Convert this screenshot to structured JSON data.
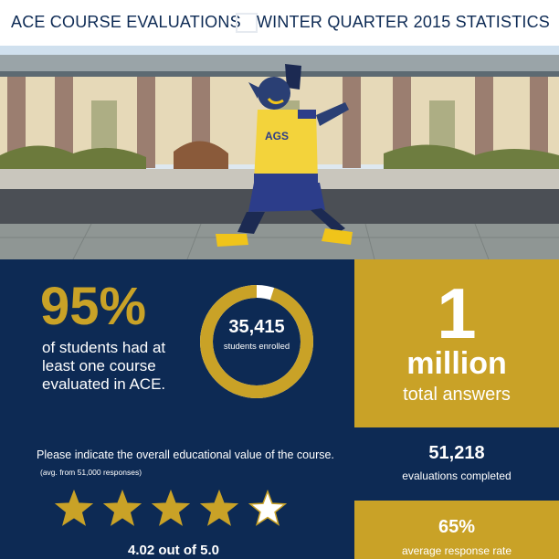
{
  "header": {
    "left_title": "ACE COURSE EVALUATIONS",
    "right_title": "WINTER QUARTER 2015 STATISTICS",
    "mascot_jersey_text": "AGS"
  },
  "colors": {
    "navy": "#0d2a54",
    "gold": "#c9a227",
    "white": "#ffffff"
  },
  "participation": {
    "percent": "95%",
    "caption": "of students had at least one course evaluated in ACE."
  },
  "enrollment": {
    "number": "35,415",
    "caption": "students enrolled",
    "ring_fill_fraction": 0.95
  },
  "answers": {
    "number": "1",
    "unit": "million",
    "caption": "total answers"
  },
  "evaluations": {
    "number": "51,218",
    "caption": "evaluations completed"
  },
  "response_rate": {
    "number": "65%",
    "caption": "average response rate"
  },
  "rating": {
    "question": "Please indicate the overall educational value of the course.",
    "note": "(avg. from 51,000 responses)",
    "filled_stars": 4,
    "total_stars": 5,
    "score_text": "4.02 out of 5.0"
  }
}
